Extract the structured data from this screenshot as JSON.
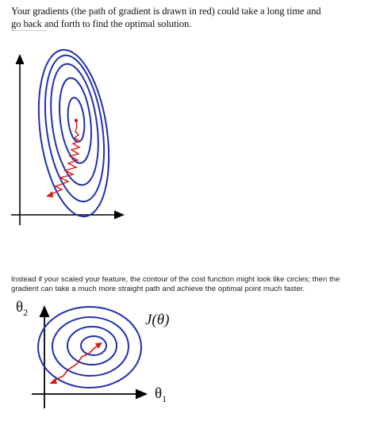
{
  "top_text": {
    "line1": "Your gradients (the path of gradient is drawn in red) could take a long time and",
    "line2": "go back and forth to find the optimal solution."
  },
  "bottom_text": {
    "line1": "Instead if your scaled your feature, the contour of the cost function might look like circles; then the",
    "line2": "gradient can take a much more straight path and achieve the optimal point much faster."
  },
  "figure_circular": {
    "y_label": "θ",
    "y_label_sub": "2",
    "x_label": "θ",
    "x_label_sub": "1",
    "function_label": "J(θ)"
  },
  "colors": {
    "contour": "#1f2fb0",
    "gradient_path": "#d11a1a",
    "axis": "#000000"
  }
}
